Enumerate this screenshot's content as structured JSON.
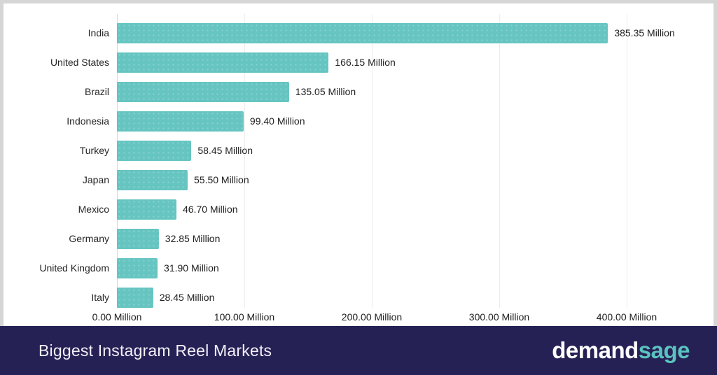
{
  "chart_data": {
    "type": "bar",
    "orientation": "horizontal",
    "title": "Biggest Instagram Reel Markets",
    "unit": "Million",
    "categories": [
      "India",
      "United States",
      "Brazil",
      "Indonesia",
      "Turkey",
      "Japan",
      "Mexico",
      "Germany",
      "United Kingdom",
      "Italy"
    ],
    "values": [
      385.35,
      166.15,
      135.05,
      99.4,
      58.45,
      55.5,
      46.7,
      32.85,
      31.9,
      28.45
    ],
    "value_labels": [
      "385.35 Million",
      "166.15 Million",
      "135.05 Million",
      "99.40 Million",
      "58.45 Million",
      "55.50 Million",
      "46.70 Million",
      "32.85 Million",
      "31.90 Million",
      "28.45 Million"
    ],
    "x_ticks": [
      {
        "value": 0,
        "label": "0.00 Million"
      },
      {
        "value": 100,
        "label": "100.00 Million"
      },
      {
        "value": 200,
        "label": "200.00 Million"
      },
      {
        "value": 300,
        "label": "300.00 Million"
      },
      {
        "value": 400,
        "label": "400.00 Million"
      }
    ],
    "xlim": [
      0,
      435
    ],
    "grid": true,
    "legend": false,
    "bar_color": "#66c5c1",
    "gridline_color": "#ececec"
  },
  "footer": {
    "title": "Biggest Instagram Reel Markets",
    "background_color": "#262155",
    "logo": {
      "text_part1": "demand",
      "text_part2": "sage",
      "part1_color": "#ffffff",
      "part2_color": "#5bc3bf"
    }
  }
}
